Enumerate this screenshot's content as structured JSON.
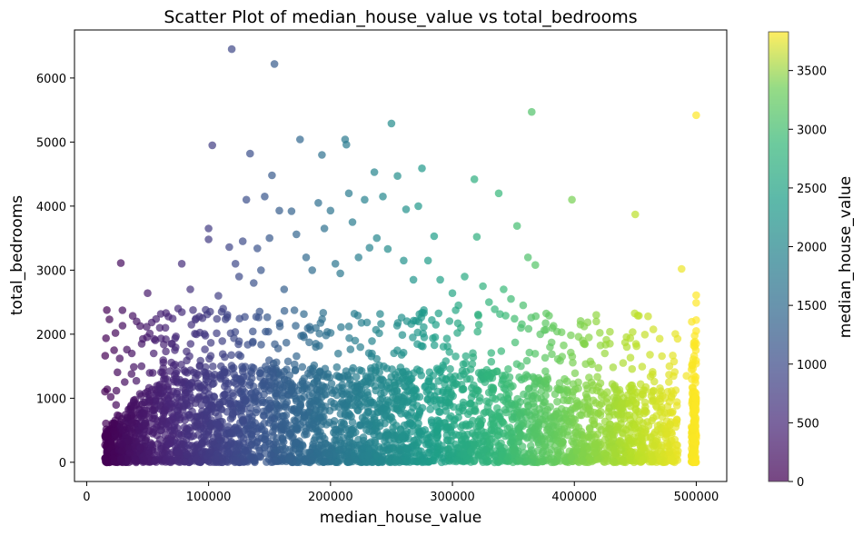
{
  "chart_data": {
    "type": "scatter",
    "title": "Scatter Plot of median_house_value vs total_bedrooms",
    "xlabel": "median_house_value",
    "ylabel": "total_bedrooms",
    "xlim": [
      -10000,
      525000
    ],
    "ylim": [
      -300,
      6750
    ],
    "x_ticks": [
      0,
      100000,
      200000,
      300000,
      400000,
      500000
    ],
    "x_tick_labels": [
      "0",
      "100000",
      "200000",
      "300000",
      "400000",
      "500000"
    ],
    "y_ticks": [
      0,
      1000,
      2000,
      3000,
      4000,
      5000,
      6000
    ],
    "y_tick_labels": [
      "0",
      "1000",
      "2000",
      "3000",
      "4000",
      "5000",
      "6000"
    ],
    "grid": false,
    "colormap": "viridis",
    "marker_alpha": 0.7,
    "colorbar": {
      "label": "median_house_value",
      "range": [
        0,
        3830
      ],
      "ticks": [
        0,
        500,
        1000,
        1500,
        2000,
        2500,
        3000,
        3500
      ],
      "tick_labels": [
        "0",
        "500",
        "1000",
        "1500",
        "2000",
        "2500",
        "3000",
        "3500"
      ]
    },
    "points": [
      [
        15000,
        270
      ],
      [
        15000,
        60
      ],
      [
        22500,
        1750
      ],
      [
        28000,
        3110
      ],
      [
        33000,
        1760
      ],
      [
        37000,
        1700
      ],
      [
        41000,
        2200
      ],
      [
        45000,
        1500
      ],
      [
        50000,
        2640
      ],
      [
        55000,
        1700
      ],
      [
        60000,
        2100
      ],
      [
        65000,
        2330
      ],
      [
        70000,
        1850
      ],
      [
        75000,
        2400
      ],
      [
        78000,
        3100
      ],
      [
        85000,
        2700
      ],
      [
        90000,
        2000
      ],
      [
        95000,
        2250
      ],
      [
        100000,
        3650
      ],
      [
        100000,
        3480
      ],
      [
        103000,
        4950
      ],
      [
        108000,
        2600
      ],
      [
        112000,
        2400
      ],
      [
        117000,
        3360
      ],
      [
        119000,
        6450
      ],
      [
        122000,
        3100
      ],
      [
        125000,
        2900
      ],
      [
        128000,
        3450
      ],
      [
        131000,
        4100
      ],
      [
        134000,
        4820
      ],
      [
        137000,
        2800
      ],
      [
        140000,
        3340
      ],
      [
        143000,
        3000
      ],
      [
        146000,
        4150
      ],
      [
        150000,
        3500
      ],
      [
        152000,
        4480
      ],
      [
        154000,
        6220
      ],
      [
        158000,
        3930
      ],
      [
        162000,
        2700
      ],
      [
        168000,
        3920
      ],
      [
        172000,
        3560
      ],
      [
        175000,
        5040
      ],
      [
        180000,
        3200
      ],
      [
        185000,
        3000
      ],
      [
        190000,
        4050
      ],
      [
        193000,
        4800
      ],
      [
        195000,
        3650
      ],
      [
        200000,
        3930
      ],
      [
        204000,
        3100
      ],
      [
        208000,
        2950
      ],
      [
        212000,
        5040
      ],
      [
        213000,
        4960
      ],
      [
        215000,
        4200
      ],
      [
        218000,
        3750
      ],
      [
        223000,
        3200
      ],
      [
        228000,
        4100
      ],
      [
        232000,
        3350
      ],
      [
        236000,
        4530
      ],
      [
        238000,
        3500
      ],
      [
        243000,
        4150
      ],
      [
        247000,
        3330
      ],
      [
        250000,
        5290
      ],
      [
        255000,
        4470
      ],
      [
        260000,
        3150
      ],
      [
        262000,
        3950
      ],
      [
        268000,
        2850
      ],
      [
        272000,
        4000
      ],
      [
        275000,
        4590
      ],
      [
        280000,
        3150
      ],
      [
        285000,
        3530
      ],
      [
        290000,
        2850
      ],
      [
        300000,
        2640
      ],
      [
        305000,
        2450
      ],
      [
        310000,
        2900
      ],
      [
        318000,
        4420
      ],
      [
        320000,
        3520
      ],
      [
        325000,
        2750
      ],
      [
        330000,
        2500
      ],
      [
        338000,
        4200
      ],
      [
        342000,
        2700
      ],
      [
        348000,
        2550
      ],
      [
        353000,
        3690
      ],
      [
        358000,
        2450
      ],
      [
        362000,
        3200
      ],
      [
        365000,
        5470
      ],
      [
        368000,
        3080
      ],
      [
        372000,
        2000
      ],
      [
        380000,
        1800
      ],
      [
        390000,
        1650
      ],
      [
        398000,
        4100
      ],
      [
        405000,
        2150
      ],
      [
        412000,
        1950
      ],
      [
        418000,
        2200
      ],
      [
        425000,
        1700
      ],
      [
        440000,
        1550
      ],
      [
        450000,
        3870
      ],
      [
        452000,
        2290
      ],
      [
        462000,
        1680
      ],
      [
        470000,
        1930
      ],
      [
        478000,
        1500
      ],
      [
        488000,
        3020
      ],
      [
        492000,
        1350
      ],
      [
        500000,
        5420
      ],
      [
        500000,
        2610
      ],
      [
        500000,
        2490
      ],
      [
        500000,
        2220
      ],
      [
        500000,
        2050
      ],
      [
        500000,
        1850
      ]
    ],
    "dense_cloud": {
      "x_range": [
        14999,
        500001
      ],
      "y_range": [
        0,
        2400
      ],
      "y_typical_max": 1500,
      "count": 4000
    }
  }
}
